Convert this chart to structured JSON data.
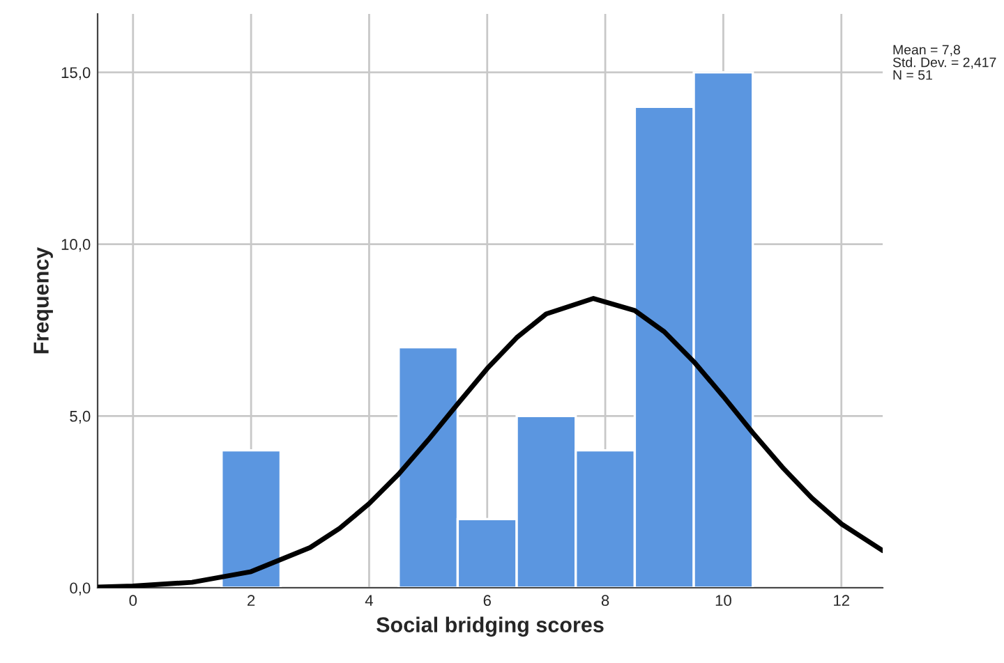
{
  "chart_data": {
    "type": "histogram",
    "xlabel": "Social bridging scores",
    "ylabel": "Frequency",
    "bins": [
      1.5,
      2.5,
      3.5,
      4.5,
      5.5,
      6.5,
      7.5,
      8.5,
      9.5,
      10.5
    ],
    "values": [
      4,
      0,
      0,
      7,
      2,
      5,
      4,
      14,
      15
    ],
    "color": "#5b96e0",
    "series": [
      {
        "type": "line",
        "color": "#000000",
        "x": [
          -0.6,
          0,
          1,
          2,
          3,
          3.5,
          4,
          4.5,
          5,
          5.5,
          6,
          6.5,
          7,
          7.8,
          8.5,
          9,
          9.5,
          10,
          10.5,
          11,
          11.5,
          12,
          12.7
        ],
        "values": [
          0.02,
          0.05,
          0.16,
          0.47,
          1.17,
          1.73,
          2.45,
          3.31,
          4.3,
          5.35,
          6.38,
          7.28,
          7.97,
          8.42,
          8.07,
          7.45,
          6.58,
          5.57,
          4.51,
          3.51,
          2.61,
          1.86,
          1.08
        ]
      }
    ],
    "xlim": [
      -0.6,
      12.7
    ],
    "ylim": [
      0,
      16.7
    ],
    "xticks": [
      0,
      2,
      4,
      6,
      8,
      10,
      12
    ],
    "yticks": [
      {
        "value": 0,
        "label": "0,0"
      },
      {
        "value": 5,
        "label": "5,0"
      },
      {
        "value": 10,
        "label": "10,0"
      },
      {
        "value": 15,
        "label": "15,0"
      }
    ],
    "grid": true,
    "annotations": [
      "Mean = 7,8\nStd. Dev. = 2,417\nN = 51"
    ]
  }
}
